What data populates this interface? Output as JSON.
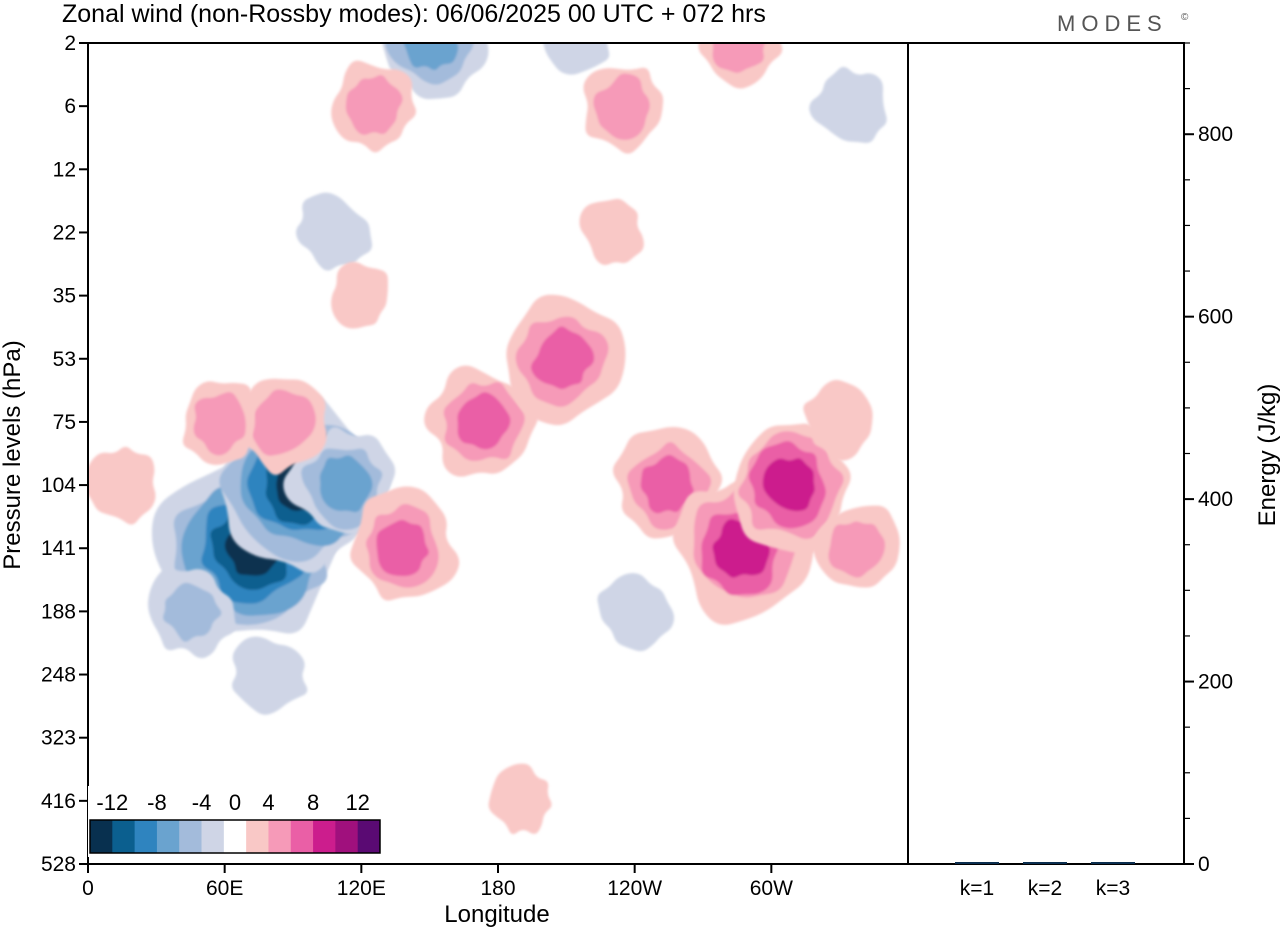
{
  "header": {
    "title": "Zonal wind (non-Rossby modes):  06/06/2025  00 UTC  + 072 hrs",
    "brand": "MODES",
    "brand_mark": "©"
  },
  "colors": {
    "negative": [
      "#08304f",
      "#0b5f8f",
      "#2f84bf",
      "#6aa3cf",
      "#a3bbdb",
      "#cfd5e6"
    ],
    "neutral": "#ffffff",
    "positive": [
      "#f9c8c6",
      "#f69ab8",
      "#ea5fa6",
      "#cc1d8d",
      "#a0107d",
      "#5a0a73"
    ]
  },
  "chart_data": [
    {
      "type": "heatmap",
      "title": "Zonal wind (non-Rossby modes):  06/06/2025  00 UTC  + 072 hrs",
      "xlabel": "Longitude",
      "ylabel": "Pressure levels (hPa)",
      "x_ticks": [
        "0",
        "60E",
        "120E",
        "180",
        "120W",
        "60W"
      ],
      "x_tick_values": [
        0,
        60,
        120,
        180,
        240,
        300
      ],
      "xlim": [
        0,
        360
      ],
      "y_ticks": [
        "2",
        "6",
        "12",
        "22",
        "35",
        "53",
        "75",
        "104",
        "141",
        "188",
        "248",
        "323",
        "416",
        "528"
      ],
      "colorbar": {
        "tick_labels": [
          "-12",
          "-8",
          "-4",
          "0",
          "4",
          "8",
          "12"
        ],
        "tick_values": [
          -12,
          -8,
          -4,
          0,
          4,
          8,
          12
        ],
        "bins": [
          -14,
          -12,
          -10,
          -8,
          -6,
          -4,
          -2,
          2,
          4,
          6,
          8,
          10,
          12,
          14
        ]
      },
      "features": [
        {
          "lon": 72,
          "level": 141,
          "value": -13
        },
        {
          "lon": 93,
          "level": 104,
          "value": -12
        },
        {
          "lon": 112,
          "level": 104,
          "value": -6
        },
        {
          "lon": 45,
          "level": 188,
          "value": -4
        },
        {
          "lon": 80,
          "level": 248,
          "value": -3
        },
        {
          "lon": 108,
          "level": 22,
          "value": -3
        },
        {
          "lon": 150,
          "level": 2,
          "value": -6
        },
        {
          "lon": 215,
          "level": 2,
          "value": -2
        },
        {
          "lon": 240,
          "level": 188,
          "value": -3
        },
        {
          "lon": 335,
          "level": 6,
          "value": -3
        },
        {
          "lon": 85,
          "level": 75,
          "value": 5
        },
        {
          "lon": 58,
          "level": 75,
          "value": 4
        },
        {
          "lon": 15,
          "level": 104,
          "value": 3
        },
        {
          "lon": 138,
          "level": 141,
          "value": 6
        },
        {
          "lon": 173,
          "level": 75,
          "value": 6
        },
        {
          "lon": 208,
          "level": 53,
          "value": 7
        },
        {
          "lon": 255,
          "level": 104,
          "value": 6
        },
        {
          "lon": 287,
          "level": 141,
          "value": 9
        },
        {
          "lon": 308,
          "level": 104,
          "value": 8
        },
        {
          "lon": 338,
          "level": 141,
          "value": 4
        },
        {
          "lon": 285,
          "level": 2,
          "value": 4
        },
        {
          "lon": 235,
          "level": 6,
          "value": 4
        },
        {
          "lon": 125,
          "level": 6,
          "value": 4
        },
        {
          "lon": 330,
          "level": 75,
          "value": 3
        },
        {
          "lon": 190,
          "level": 416,
          "value": 2
        },
        {
          "lon": 120,
          "level": 35,
          "value": 2
        },
        {
          "lon": 230,
          "level": 22,
          "value": 2
        }
      ]
    },
    {
      "type": "bar",
      "ylabel": "Energy (J/kg)",
      "categories": [
        "k=1",
        "k=2",
        "k=3"
      ],
      "values": [
        1,
        1,
        1
      ],
      "ylim": [
        0,
        900
      ],
      "y_ticks": [
        0,
        200,
        400,
        600,
        800
      ]
    }
  ]
}
